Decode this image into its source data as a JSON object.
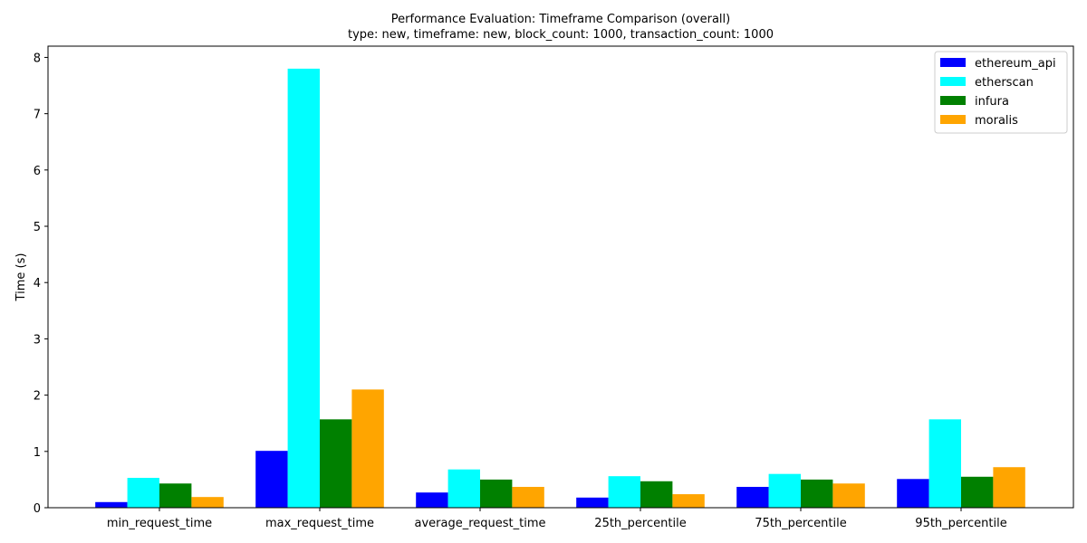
{
  "chart_data": {
    "type": "bar",
    "title": "Performance Evaluation: Timeframe Comparison (overall)",
    "subtitle": "type: new, timeframe: new, block_count: 1000, transaction_count: 1000",
    "xlabel": "",
    "ylabel": "Time (s)",
    "ylim": [
      0,
      8.2
    ],
    "yticks": [
      0,
      1,
      2,
      3,
      4,
      5,
      6,
      7,
      8
    ],
    "grid": false,
    "legend_position": "top-right",
    "categories": [
      "min_request_time",
      "max_request_time",
      "average_request_time",
      "25th_percentile",
      "75th_percentile",
      "95th_percentile"
    ],
    "series": [
      {
        "name": "ethereum_api",
        "color": "#0000ff",
        "values": [
          0.1,
          1.01,
          0.27,
          0.18,
          0.37,
          0.51
        ]
      },
      {
        "name": "etherscan",
        "color": "#00ffff",
        "values": [
          0.53,
          7.8,
          0.68,
          0.56,
          0.6,
          1.57
        ]
      },
      {
        "name": "infura",
        "color": "#008000",
        "values": [
          0.43,
          1.57,
          0.5,
          0.47,
          0.5,
          0.55
        ]
      },
      {
        "name": "moralis",
        "color": "#ffa500",
        "values": [
          0.19,
          2.1,
          0.37,
          0.24,
          0.43,
          0.72
        ]
      }
    ]
  }
}
